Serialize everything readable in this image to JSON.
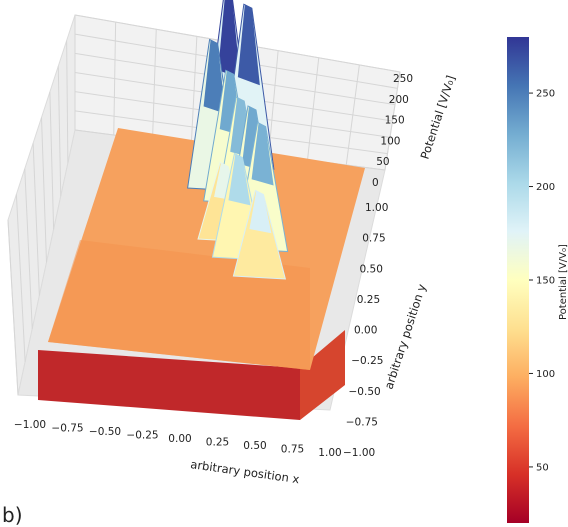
{
  "panel_label": "b)",
  "chart_data": {
    "type": "surface3d",
    "title": "",
    "xlabel": "arbitrary position x",
    "ylabel": "arbitrary position y",
    "zlabel": "Potential [V/V₀]",
    "xlim": [
      -1.0,
      1.0
    ],
    "ylim": [
      -1.0,
      1.0
    ],
    "zlim": [
      0,
      280
    ],
    "x_ticks": [
      "−1.00",
      "−0.75",
      "−0.50",
      "−0.25",
      "0.00",
      "0.25",
      "0.50",
      "0.75",
      "1.00"
    ],
    "y_ticks": [
      "−1.00",
      "−0.75",
      "−0.50",
      "−0.25",
      "0.00",
      "0.25",
      "0.50",
      "0.75",
      "1.00"
    ],
    "z_ticks": [
      "0",
      "50",
      "100",
      "150",
      "200",
      "250"
    ],
    "background_potential": 85,
    "edge_potential": 25,
    "peaks": [
      {
        "x": -0.1,
        "y": 0.78,
        "value": 275
      },
      {
        "x": 0.05,
        "y": 0.78,
        "value": 265
      },
      {
        "x": -0.15,
        "y": 0.55,
        "value": 250
      },
      {
        "x": 0.0,
        "y": 0.45,
        "value": 230
      },
      {
        "x": 0.12,
        "y": 0.3,
        "value": 220
      },
      {
        "x": 0.25,
        "y": 0.15,
        "value": 230
      },
      {
        "x": 0.35,
        "y": 0.05,
        "value": 225
      },
      {
        "x": 0.2,
        "y": -0.05,
        "value": 200
      },
      {
        "x": 0.4,
        "y": -0.2,
        "value": 180
      },
      {
        "x": 0.05,
        "y": 0.1,
        "value": 170
      }
    ],
    "grid": true,
    "colormap": "RdYlBu",
    "colorbar": {
      "label": "Potential [V/V₀]",
      "ticks": [
        50,
        100,
        150,
        200,
        250
      ],
      "range": [
        20,
        280
      ],
      "placement": "right"
    }
  }
}
